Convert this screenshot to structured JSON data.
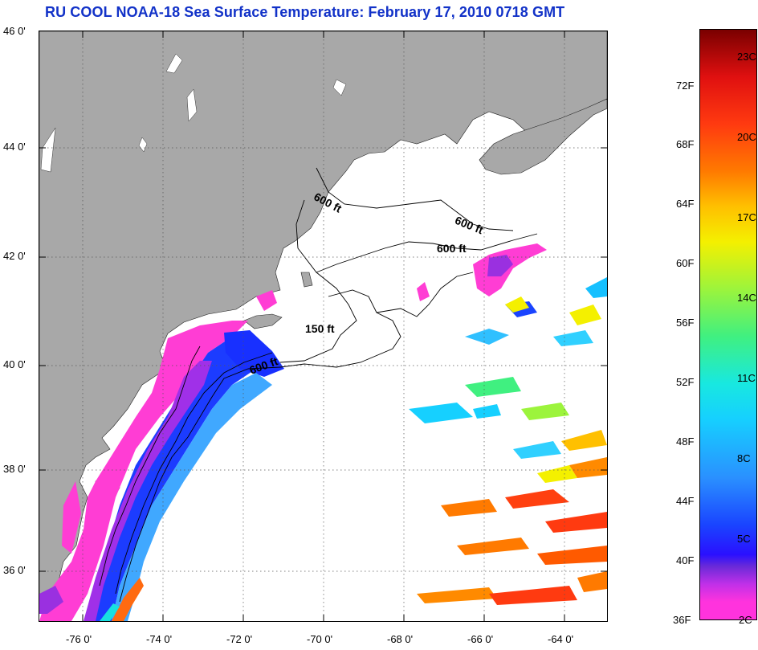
{
  "title": "RU COOL  NOAA-18  Sea Surface Temperature:  February 17, 2010 0718 GMT",
  "map": {
    "lat_labels": [
      "46 0'",
      "44 0'",
      "42 0'",
      "40 0'",
      "38 0'",
      "36 0'"
    ],
    "lon_labels": [
      "-76 0'",
      "-74 0'",
      "-72 0'",
      "-70 0'",
      "-68 0'",
      "-66 0'",
      "-64 0'"
    ],
    "contour_labels": [
      "600 ft",
      "600 ft",
      "600 ft",
      "150 ft",
      "600 ft"
    ],
    "land_color": "#a8a8a8",
    "water_color": "#ffffff"
  },
  "colorbar": {
    "fahrenheit_labels": [
      "72F",
      "68F",
      "64F",
      "60F",
      "56F",
      "52F",
      "48F",
      "44F",
      "40F",
      "36F"
    ],
    "celsius_labels": [
      "23C",
      "20C",
      "17C",
      "14C",
      "11C",
      "8C",
      "5C",
      "2C"
    ]
  }
}
